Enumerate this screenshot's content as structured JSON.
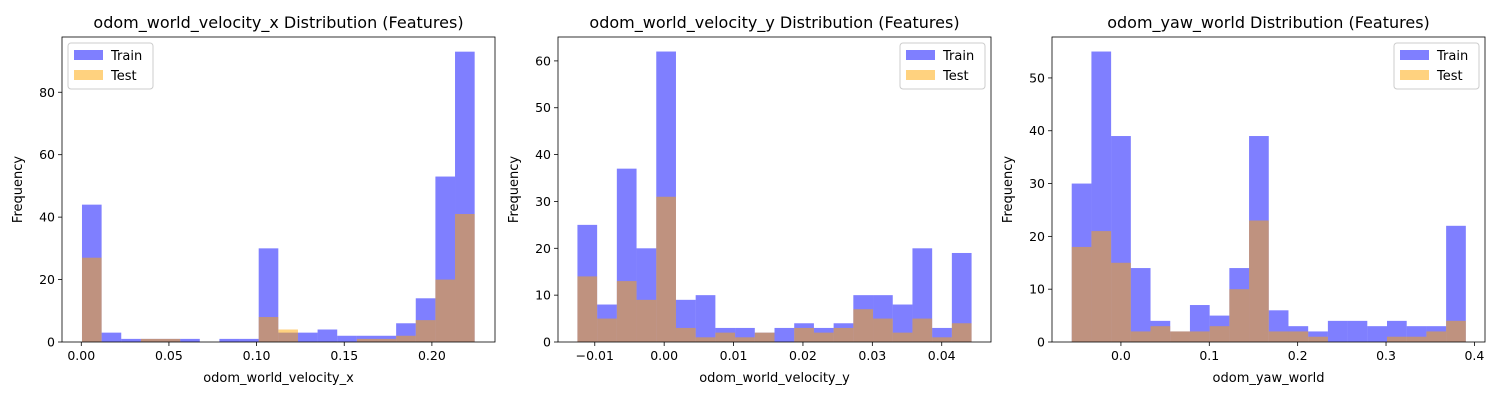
{
  "chart_data": [
    {
      "type": "bar",
      "histogram": true,
      "title": "odom_world_velocity_x Distribution (Features)",
      "xlabel": "odom_world_velocity_x",
      "ylabel": "Frequency",
      "xlim": [
        -0.011,
        0.236
      ],
      "ylim": [
        0,
        97.7
      ],
      "xticks": [
        0.0,
        0.05,
        0.1,
        0.15,
        0.2
      ],
      "xtick_labels": [
        "0.00",
        "0.05",
        "0.10",
        "0.15",
        "0.20"
      ],
      "yticks": [
        0,
        20,
        40,
        60,
        80
      ],
      "grid": false,
      "legend_position": "top-left",
      "series": [
        {
          "name": "Train",
          "color": "#0000ff",
          "alpha": 0.5,
          "bin_edges": [
            0.0004,
            0.0116,
            0.0228,
            0.034,
            0.0452,
            0.0564,
            0.0676,
            0.0788,
            0.09,
            0.1012,
            0.1124,
            0.1236,
            0.1348,
            0.146,
            0.1572,
            0.1684,
            0.1796,
            0.1908,
            0.202,
            0.2132,
            0.2244
          ],
          "counts": [
            44,
            3,
            1,
            1,
            1,
            1,
            0,
            1,
            1,
            30,
            3,
            3,
            4,
            2,
            2,
            2,
            6,
            14,
            53,
            93
          ]
        },
        {
          "name": "Test",
          "color": "#ffa500",
          "alpha": 0.5,
          "bin_edges": [
            0.0004,
            0.0116,
            0.0228,
            0.034,
            0.0452,
            0.0564,
            0.0676,
            0.0788,
            0.09,
            0.1012,
            0.1124,
            0.1236,
            0.1348,
            0.146,
            0.1572,
            0.1684,
            0.1796,
            0.1908,
            0.202,
            0.2132,
            0.2244
          ],
          "counts": [
            27,
            0,
            0,
            1,
            1,
            0,
            0,
            0,
            0,
            8,
            4,
            0,
            0,
            0,
            1,
            1,
            2,
            7,
            20,
            41
          ]
        }
      ]
    },
    {
      "type": "bar",
      "histogram": true,
      "title": "odom_world_velocity_y Distribution (Features)",
      "xlabel": "odom_world_velocity_y",
      "ylabel": "Frequency",
      "xlim": [
        -0.0153,
        0.0471
      ],
      "ylim": [
        0,
        65.1
      ],
      "xticks": [
        -0.01,
        0.0,
        0.01,
        0.02,
        0.03,
        0.04
      ],
      "xtick_labels": [
        "−0.01",
        "0.00",
        "0.01",
        "0.02",
        "0.03",
        "0.04"
      ],
      "yticks": [
        0,
        10,
        20,
        30,
        40,
        50,
        60
      ],
      "grid": false,
      "legend_position": "top-right",
      "series": [
        {
          "name": "Train",
          "color": "#0000ff",
          "alpha": 0.5,
          "bin_edges": [
            -0.0125,
            -0.00966,
            -0.00682,
            -0.00398,
            -0.00114,
            0.0017,
            0.00454,
            0.00738,
            0.01022,
            0.01306,
            0.0159,
            0.01874,
            0.02158,
            0.02442,
            0.02726,
            0.0301,
            0.03294,
            0.03578,
            0.03862,
            0.04146,
            0.0443
          ],
          "counts": [
            25,
            8,
            37,
            20,
            62,
            9,
            10,
            3,
            3,
            2,
            3,
            4,
            3,
            4,
            10,
            10,
            8,
            20,
            3,
            19
          ]
        },
        {
          "name": "Test",
          "color": "#ffa500",
          "alpha": 0.5,
          "bin_edges": [
            -0.0125,
            -0.00966,
            -0.00682,
            -0.00398,
            -0.00114,
            0.0017,
            0.00454,
            0.00738,
            0.01022,
            0.01306,
            0.0159,
            0.01874,
            0.02158,
            0.02442,
            0.02726,
            0.0301,
            0.03294,
            0.03578,
            0.03862,
            0.04146,
            0.0443
          ],
          "counts": [
            14,
            5,
            13,
            9,
            31,
            3,
            1,
            2,
            1,
            2,
            0,
            3,
            2,
            3,
            7,
            5,
            2,
            5,
            1,
            4
          ]
        }
      ]
    },
    {
      "type": "bar",
      "histogram": true,
      "title": "odom_yaw_world Distribution (Features)",
      "xlabel": "odom_yaw_world",
      "ylabel": "Frequency",
      "xlim": [
        -0.078,
        0.412
      ],
      "ylim": [
        0,
        57.75
      ],
      "xticks": [
        0.0,
        0.1,
        0.2,
        0.3,
        0.4
      ],
      "xtick_labels": [
        "0.0",
        "0.1",
        "0.2",
        "0.3",
        "0.4"
      ],
      "yticks": [
        0,
        10,
        20,
        30,
        40,
        50
      ],
      "grid": false,
      "legend_position": "top-right",
      "series": [
        {
          "name": "Train",
          "color": "#0000ff",
          "alpha": 0.5,
          "bin_edges": [
            -0.0557,
            -0.0334,
            -0.0111,
            0.0112,
            0.0335,
            0.0558,
            0.0781,
            0.1004,
            0.1227,
            0.145,
            0.1673,
            0.1896,
            0.2119,
            0.2342,
            0.2565,
            0.2788,
            0.3011,
            0.3234,
            0.3457,
            0.368,
            0.3903
          ],
          "counts": [
            30,
            55,
            39,
            14,
            4,
            2,
            7,
            5,
            14,
            39,
            6,
            3,
            2,
            4,
            4,
            3,
            4,
            3,
            3,
            22
          ]
        },
        {
          "name": "Test",
          "color": "#ffa500",
          "alpha": 0.5,
          "bin_edges": [
            -0.0557,
            -0.0334,
            -0.0111,
            0.0112,
            0.0335,
            0.0558,
            0.0781,
            0.1004,
            0.1227,
            0.145,
            0.1673,
            0.1896,
            0.2119,
            0.2342,
            0.2565,
            0.2788,
            0.3011,
            0.3234,
            0.3457,
            0.368,
            0.3903
          ],
          "counts": [
            18,
            21,
            15,
            2,
            3,
            2,
            2,
            3,
            10,
            23,
            2,
            2,
            1,
            0,
            0,
            0,
            1,
            1,
            2,
            4
          ]
        }
      ]
    }
  ]
}
